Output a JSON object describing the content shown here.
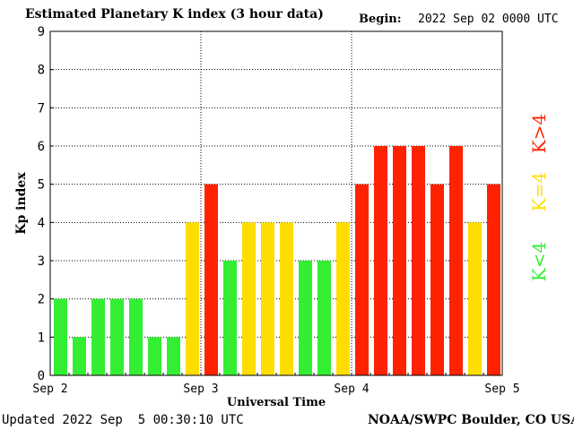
{
  "header": {
    "title": "Estimated Planetary K index (3 hour data)",
    "begin_label": "Begin:",
    "begin_value": "2022 Sep 02 0000 UTC"
  },
  "footer": {
    "updated": "Updated 2022 Sep  5 00:30:10 UTC",
    "credit": "NOAA/SWPC Boulder, CO USA"
  },
  "legend": {
    "low": "K<4",
    "mid": "K=4",
    "high": "K>4"
  },
  "colors": {
    "low": "#33ee33",
    "mid": "#ffdd00",
    "high": "#ff2200"
  },
  "chart_data": {
    "type": "bar",
    "title": "Estimated Planetary K index (3 hour data)",
    "xlabel": "Universal Time",
    "ylabel": "Kp index",
    "ylim": [
      0,
      9
    ],
    "yticks": [
      "0",
      "1",
      "2",
      "3",
      "4",
      "5",
      "6",
      "7",
      "8",
      "9"
    ],
    "xticks": [
      "Sep 2",
      "Sep 3",
      "Sep 4",
      "Sep 5"
    ],
    "grid": true,
    "values": [
      2,
      1,
      2,
      2,
      2,
      1,
      1,
      4,
      5,
      3,
      4,
      4,
      4,
      3,
      3,
      4,
      5,
      6,
      6,
      6,
      5,
      6,
      4,
      5
    ]
  }
}
